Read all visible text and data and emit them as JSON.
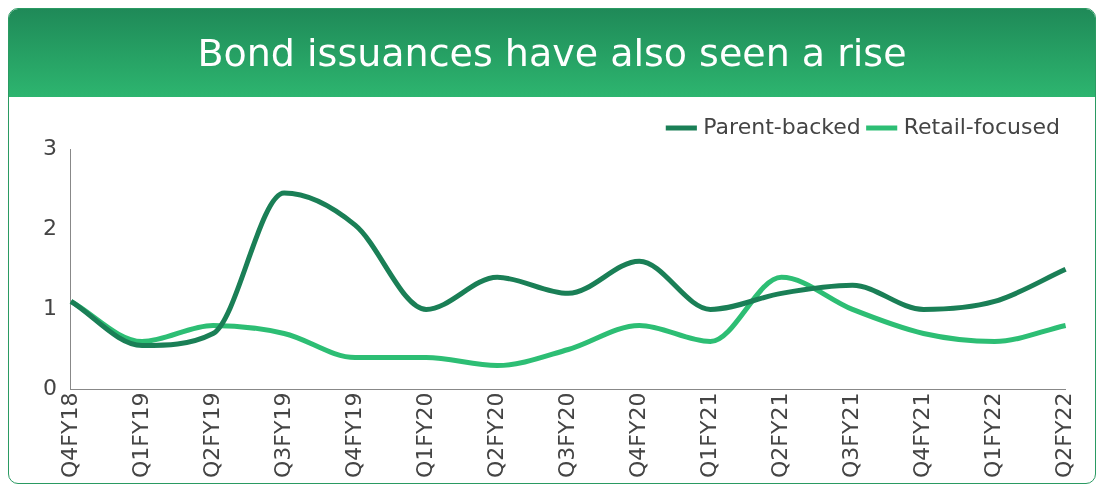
{
  "chart_data": {
    "type": "line",
    "title": "Bond issuances have also seen a rise",
    "categories": [
      "Q4FY18",
      "Q1FY19",
      "Q2FY19",
      "Q3FY19",
      "Q4FY19",
      "Q1FY20",
      "Q2FY20",
      "Q3FY20",
      "Q4FY20",
      "Q1FY21",
      "Q2FY21",
      "Q3FY21",
      "Q4FY21",
      "Q1FY22",
      "Q2FY22"
    ],
    "series": [
      {
        "name": "Parent-backed",
        "color": "#1a7f56",
        "values": [
          1.1,
          0.55,
          0.7,
          2.45,
          2.05,
          1.0,
          1.4,
          1.2,
          1.6,
          1.0,
          1.2,
          1.3,
          1.0,
          1.1,
          1.5
        ]
      },
      {
        "name": "Retail-focused",
        "color": "#2dbe74",
        "values": [
          1.1,
          0.6,
          0.8,
          0.7,
          0.4,
          0.4,
          0.3,
          0.5,
          0.8,
          0.6,
          1.4,
          1.0,
          0.7,
          0.6,
          0.8
        ]
      }
    ],
    "ylim": [
      0,
      3
    ],
    "yticks": [
      0,
      1,
      2,
      3
    ],
    "grid": false,
    "legend": "top right",
    "marker": "none",
    "line_style": "solid"
  }
}
